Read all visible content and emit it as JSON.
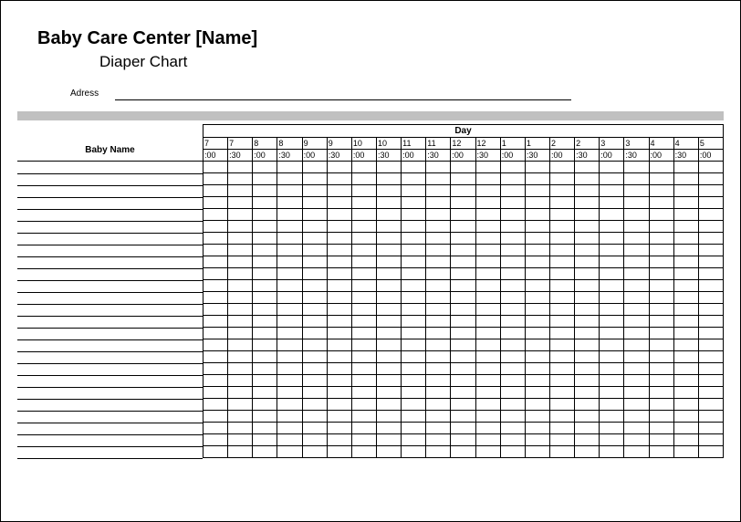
{
  "title": "Baby Care Center [Name]",
  "subtitle": "Diaper Chart",
  "address_label": "Adress",
  "day_label": "Day",
  "baby_name_label": "Baby Name",
  "time_columns": [
    {
      "hour": "7",
      "min": ":00"
    },
    {
      "hour": "7",
      "min": ":30"
    },
    {
      "hour": "8",
      "min": ":00"
    },
    {
      "hour": "8",
      "min": ":30"
    },
    {
      "hour": "9",
      "min": ":00"
    },
    {
      "hour": "9",
      "min": ":30"
    },
    {
      "hour": "10",
      "min": ":00"
    },
    {
      "hour": "10",
      "min": ":30"
    },
    {
      "hour": "11",
      "min": ":00"
    },
    {
      "hour": "11",
      "min": ":30"
    },
    {
      "hour": "12",
      "min": ":00"
    },
    {
      "hour": "12",
      "min": ":30"
    },
    {
      "hour": "1",
      "min": ":00"
    },
    {
      "hour": "1",
      "min": ":30"
    },
    {
      "hour": "2",
      "min": ":00"
    },
    {
      "hour": "2",
      "min": ":30"
    },
    {
      "hour": "3",
      "min": ":00"
    },
    {
      "hour": "3",
      "min": ":30"
    },
    {
      "hour": "4",
      "min": ":00"
    },
    {
      "hour": "4",
      "min": ":30"
    },
    {
      "hour": "5",
      "min": ":00"
    }
  ],
  "num_rows": 25,
  "colors": {
    "border": "#000000",
    "gray_bar": "#c0c0c0",
    "background": "#ffffff"
  }
}
